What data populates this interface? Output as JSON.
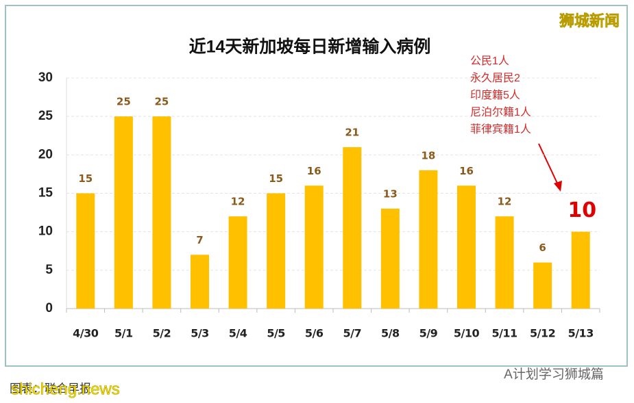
{
  "chart_data": {
    "type": "bar",
    "title": "近14天新加坡每日新增输入病例",
    "categories": [
      "4/30",
      "5/1",
      "5/2",
      "5/3",
      "5/4",
      "5/5",
      "5/6",
      "5/7",
      "5/8",
      "5/9",
      "5/10",
      "5/11",
      "5/12",
      "5/13"
    ],
    "values": [
      15,
      25,
      25,
      7,
      12,
      15,
      16,
      21,
      13,
      18,
      16,
      12,
      6,
      10
    ],
    "color": "#ffc000",
    "ylim": [
      0,
      30
    ],
    "yticks": [
      0,
      5,
      10,
      15,
      20,
      25,
      30
    ],
    "grid": true,
    "annotations": [
      "公民1人",
      "永久居民2",
      "印度籍5人",
      "尼泊尔籍1人",
      "菲律宾籍1人"
    ]
  },
  "watermarks": {
    "top_right": "狮城新闻",
    "bottom_right": "A计划学习狮城篇",
    "bottom_left": "shicheng.news"
  },
  "source": "图表：联合早报"
}
